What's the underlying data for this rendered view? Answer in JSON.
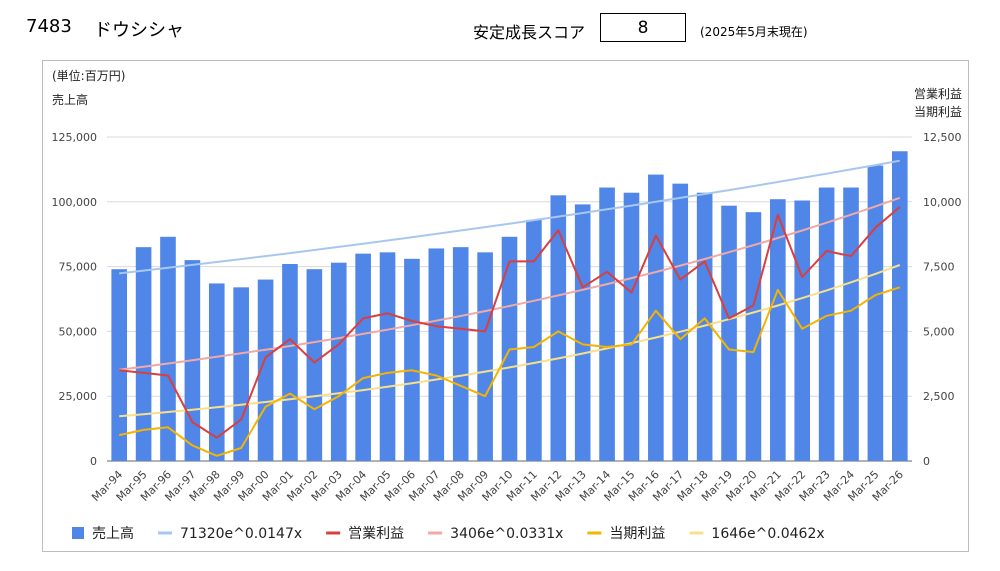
{
  "header": {
    "code": "7483",
    "name": "ドウシシャ",
    "score_label": "安定成長スコア",
    "score": "8",
    "as_of": "(2025年5月末現在)"
  },
  "chart_data": {
    "type": "bar",
    "unit_label": "(単位:百万円)",
    "left_axis_label": "売上高",
    "right_axis_label_1": "営業利益",
    "right_axis_label_2": "当期利益",
    "categories": [
      "Mar-94",
      "Mar-95",
      "Mar-96",
      "Mar-97",
      "Mar-98",
      "Mar-99",
      "Mar-00",
      "Mar-01",
      "Mar-02",
      "Mar-03",
      "Mar-04",
      "Mar-05",
      "Mar-06",
      "Mar-07",
      "Mar-08",
      "Mar-09",
      "Mar-10",
      "Mar-11",
      "Mar-12",
      "Mar-13",
      "Mar-14",
      "Mar-15",
      "Mar-16",
      "Mar-17",
      "Mar-18",
      "Mar-19",
      "Mar-20",
      "Mar-21",
      "Mar-22",
      "Mar-23",
      "Mar-24",
      "Mar-25",
      "Mar-26"
    ],
    "ylim_left": [
      0,
      125000
    ],
    "yticks_left": [
      "0",
      "25,000",
      "50,000",
      "75,000",
      "100,000",
      "125,000"
    ],
    "ylim_right": [
      0,
      12500
    ],
    "yticks_right": [
      "0",
      "2,500",
      "5,000",
      "7,500",
      "10,000",
      "12,500"
    ],
    "grid": true,
    "legend_position": "bottom",
    "series": [
      {
        "name": "売上高",
        "type": "bar",
        "axis": "left",
        "color": "#4f86e8",
        "values": [
          74000,
          82500,
          86500,
          77500,
          68500,
          67000,
          70000,
          76000,
          74000,
          76500,
          80000,
          80500,
          78000,
          82000,
          82500,
          80500,
          86500,
          93000,
          102500,
          99000,
          105500,
          103500,
          110500,
          107000,
          103500,
          98500,
          96000,
          101000,
          100500,
          105500,
          105500,
          114000,
          119500
        ]
      },
      {
        "name": "71320e^0.0147x",
        "type": "trend",
        "axis": "left",
        "color": "#a8c7f0",
        "a": 71320,
        "b": 0.0147
      },
      {
        "name": "営業利益",
        "type": "line",
        "axis": "right",
        "color": "#d93f3f",
        "values": [
          3500,
          3400,
          3300,
          1500,
          900,
          1600,
          4000,
          4700,
          3800,
          4500,
          5500,
          5700,
          5400,
          5200,
          5100,
          5000,
          7700,
          7700,
          8900,
          6700,
          7300,
          6500,
          8700,
          7000,
          7700,
          5500,
          6000,
          9500,
          7100,
          8100,
          7900,
          9000,
          9800
        ]
      },
      {
        "name": "3406e^0.0331x",
        "type": "trend",
        "axis": "right",
        "color": "#f0aaa6",
        "a": 3406,
        "b": 0.0331
      },
      {
        "name": "当期利益",
        "type": "line",
        "axis": "right",
        "color": "#f5b400",
        "values": [
          1000,
          1200,
          1300,
          600,
          200,
          500,
          2100,
          2600,
          2000,
          2500,
          3200,
          3400,
          3500,
          3300,
          2900,
          2500,
          4300,
          4400,
          5000,
          4500,
          4400,
          4500,
          5800,
          4700,
          5500,
          4300,
          4200,
          6600,
          5100,
          5600,
          5800,
          6400,
          6700
        ]
      },
      {
        "name": "1646e^0.0462x",
        "type": "trend",
        "axis": "right",
        "color": "#f8e08a",
        "a": 1646,
        "b": 0.0462
      }
    ]
  }
}
